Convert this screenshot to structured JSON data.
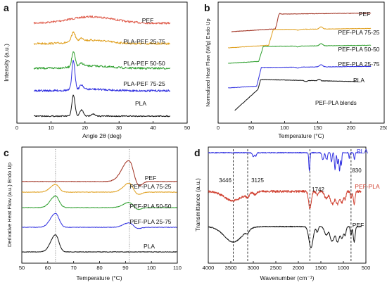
{
  "chart_data": [
    {
      "panel": "a",
      "type": "line",
      "xlabel": "Angle 2θ (deg)",
      "ylabel": "Intensity (a.u.)",
      "xlim": [
        0,
        50
      ],
      "xticks": [
        "0",
        "10",
        "20",
        "30",
        "40",
        "50"
      ],
      "series": [
        {
          "name": "PEF",
          "color": "#e06050",
          "x_range": [
            5,
            45
          ],
          "offset": 4,
          "peaks": [
            [
              22,
              0.42,
              6.5
            ]
          ]
        },
        {
          "name": "PLA-PEF 25-75",
          "color": "#e0a020",
          "x_range": [
            5,
            45
          ],
          "offset": 3,
          "peaks": [
            [
              16.6,
              0.62,
              0.55
            ],
            [
              19.0,
              0.18,
              0.6
            ],
            [
              22,
              0.22,
              5
            ]
          ]
        },
        {
          "name": "PLA-PEF 50-50",
          "color": "#30a030",
          "x_range": [
            5,
            45
          ],
          "offset": 2,
          "peaks": [
            [
              16.6,
              0.95,
              0.5
            ],
            [
              19.0,
              0.2,
              0.6
            ],
            [
              22,
              0.15,
              5
            ]
          ]
        },
        {
          "name": "PLA-PEF 75-25",
          "color": "#3030e0",
          "x_range": [
            5,
            45
          ],
          "offset": 1,
          "peaks": [
            [
              16.6,
              1.9,
              0.45
            ],
            [
              19.0,
              0.3,
              0.55
            ],
            [
              22,
              0.1,
              5
            ]
          ]
        },
        {
          "name": "PLA",
          "color": "#111111",
          "x_range": [
            5,
            45
          ],
          "offset": 0,
          "peaks": [
            [
              16.6,
              1.35,
              0.45
            ],
            [
              19.0,
              0.4,
              0.5
            ],
            [
              22.3,
              0.15,
              0.5
            ]
          ]
        }
      ]
    },
    {
      "panel": "b",
      "type": "line",
      "xlabel": "Temperature (°C)",
      "ylabel": "Normalized Heat Flow (W/g) Endo Up",
      "xlim": [
        0,
        250
      ],
      "xticks": [
        "0",
        "50",
        "100",
        "150",
        "200",
        "250"
      ],
      "annotation": "PEF-PLA blends",
      "series": [
        {
          "name": "PEF",
          "color": "#a03020",
          "x_range": [
            20,
            230
          ],
          "offset": 4,
          "tg": 90,
          "cold_cryst": null,
          "melt": null
        },
        {
          "name": "PEF-PLA 75-25",
          "color": "#e0a020",
          "x_range": [
            15,
            230
          ],
          "offset": 3,
          "tg": 80,
          "cold_cryst": 120,
          "melt": 155
        },
        {
          "name": "PEF-PLA 50-50",
          "color": "#30a030",
          "x_range": [
            15,
            230
          ],
          "offset": 2,
          "tg": 65,
          "cold_cryst": 120,
          "melt": 155
        },
        {
          "name": "PEF-PLA 25-75",
          "color": "#3030e0",
          "x_range": [
            15,
            230
          ],
          "offset": 1,
          "tg": 62,
          "cold_cryst": 120,
          "melt": 155
        },
        {
          "name": "PLA",
          "color": "#111111",
          "x_range": [
            25,
            210
          ],
          "offset": 0,
          "tg": 60,
          "cold_cryst": 115,
          "melt": 152
        }
      ]
    },
    {
      "panel": "c",
      "type": "line",
      "xlabel": "Temperature (°C)",
      "ylabel": "Derivative Heat Flow (a.u.) Endo Up",
      "xlim": [
        50,
        110
      ],
      "xticks": [
        "50",
        "60",
        "70",
        "80",
        "90",
        "100",
        "110"
      ],
      "series": [
        {
          "name": "PEF",
          "color": "#a03020",
          "offset": 4,
          "peaks": [
            [
              91.5,
              1.4,
              2.2
            ]
          ],
          "dip": [
            94.5,
            0.5,
            1.5
          ]
        },
        {
          "name": "PEF-PLA 75-25",
          "color": "#e0a020",
          "offset": 3,
          "peaks": [
            [
              63,
              0.5,
              1.6
            ],
            [
              91.5,
              0.6,
              1.8
            ]
          ],
          "dip": [
            94.5,
            0.2,
            1.5
          ]
        },
        {
          "name": "PEF-PLA 50-50",
          "color": "#30a030",
          "offset": 2,
          "peaks": [
            [
              63,
              0.75,
              1.6
            ],
            [
              91.5,
              0.35,
              1.8
            ]
          ],
          "dip": [
            94.5,
            0.15,
            1.5
          ]
        },
        {
          "name": "PEF-PLA 25-75",
          "color": "#3030e0",
          "offset": 1,
          "peaks": [
            [
              63,
              0.9,
              1.6
            ],
            [
              91.5,
              0.3,
              1.8
            ]
          ],
          "dip": [
            94.5,
            0.1,
            1.5
          ]
        },
        {
          "name": "PLA",
          "color": "#111111",
          "offset": 0,
          "peaks": [
            [
              63,
              1.1,
              1.5
            ]
          ],
          "dip": null
        }
      ],
      "reference_lines_x": [
        63,
        91.5
      ]
    },
    {
      "panel": "d",
      "type": "line",
      "xlabel": "Wavenumber (cm⁻¹)",
      "ylabel": "Transmittance (a.u.)",
      "xlim": [
        4000,
        500
      ],
      "xticks": [
        "4000",
        "3500",
        "3000",
        "2500",
        "2000",
        "1500",
        "1000",
        "500"
      ],
      "annotations": [
        "3446",
        "3125",
        "1742",
        "830"
      ],
      "reference_lines_x": [
        3446,
        3125,
        1742,
        830
      ],
      "series": [
        {
          "name": "PLA",
          "color": "#3030e0",
          "offset": 2
        },
        {
          "name": "PEF-PLA",
          "color": "#d04030",
          "offset": 1
        },
        {
          "name": "PEF",
          "color": "#111111",
          "offset": 0
        }
      ]
    }
  ],
  "labels": {
    "panel_a": "a",
    "panel_b": "b",
    "panel_c": "c",
    "panel_d": "d"
  }
}
